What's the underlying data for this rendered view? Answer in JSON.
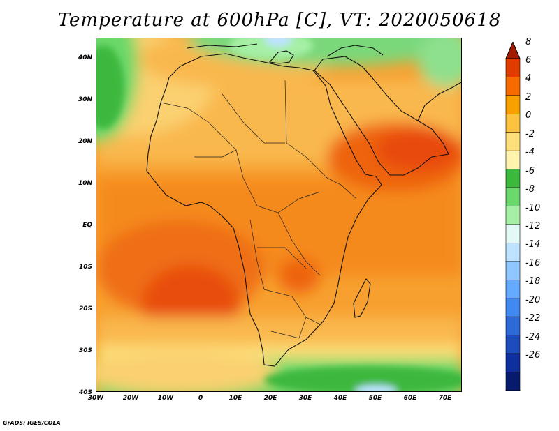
{
  "title": "Temperature at 600hPa [C], VT: 2020050618",
  "footer": "GrADS: IGES/COLA",
  "map": {
    "lat_labels": [
      "40N",
      "30N",
      "20N",
      "10N",
      "EQ",
      "10S",
      "20S",
      "30S",
      "40S"
    ],
    "lon_labels": [
      "30W",
      "20W",
      "10W",
      "0",
      "10E",
      "20E",
      "30E",
      "40E",
      "50E",
      "60E",
      "70E"
    ],
    "lon_range": [
      -30,
      75
    ],
    "lat_range": [
      -40,
      45
    ]
  },
  "colorbar": {
    "labels": [
      "8",
      "6",
      "4",
      "2",
      "0",
      "-2",
      "-4",
      "-6",
      "-8",
      "-10",
      "-12",
      "-14",
      "-16",
      "-18",
      "-20",
      "-22",
      "-24",
      "-26"
    ],
    "colors": [
      "#a01c00",
      "#e13c00",
      "#f66a00",
      "#f8a000",
      "#fbc33e",
      "#fde07a",
      "#fff3ad",
      "#3cb83c",
      "#6ad86a",
      "#a6f0a6",
      "#e3f9f5",
      "#bde3ff",
      "#8fc8ff",
      "#64aaff",
      "#4089f0",
      "#2d6ad8",
      "#1d4cbc",
      "#0e2f9e",
      "#061a6e",
      "#e8e8ff"
    ]
  }
}
